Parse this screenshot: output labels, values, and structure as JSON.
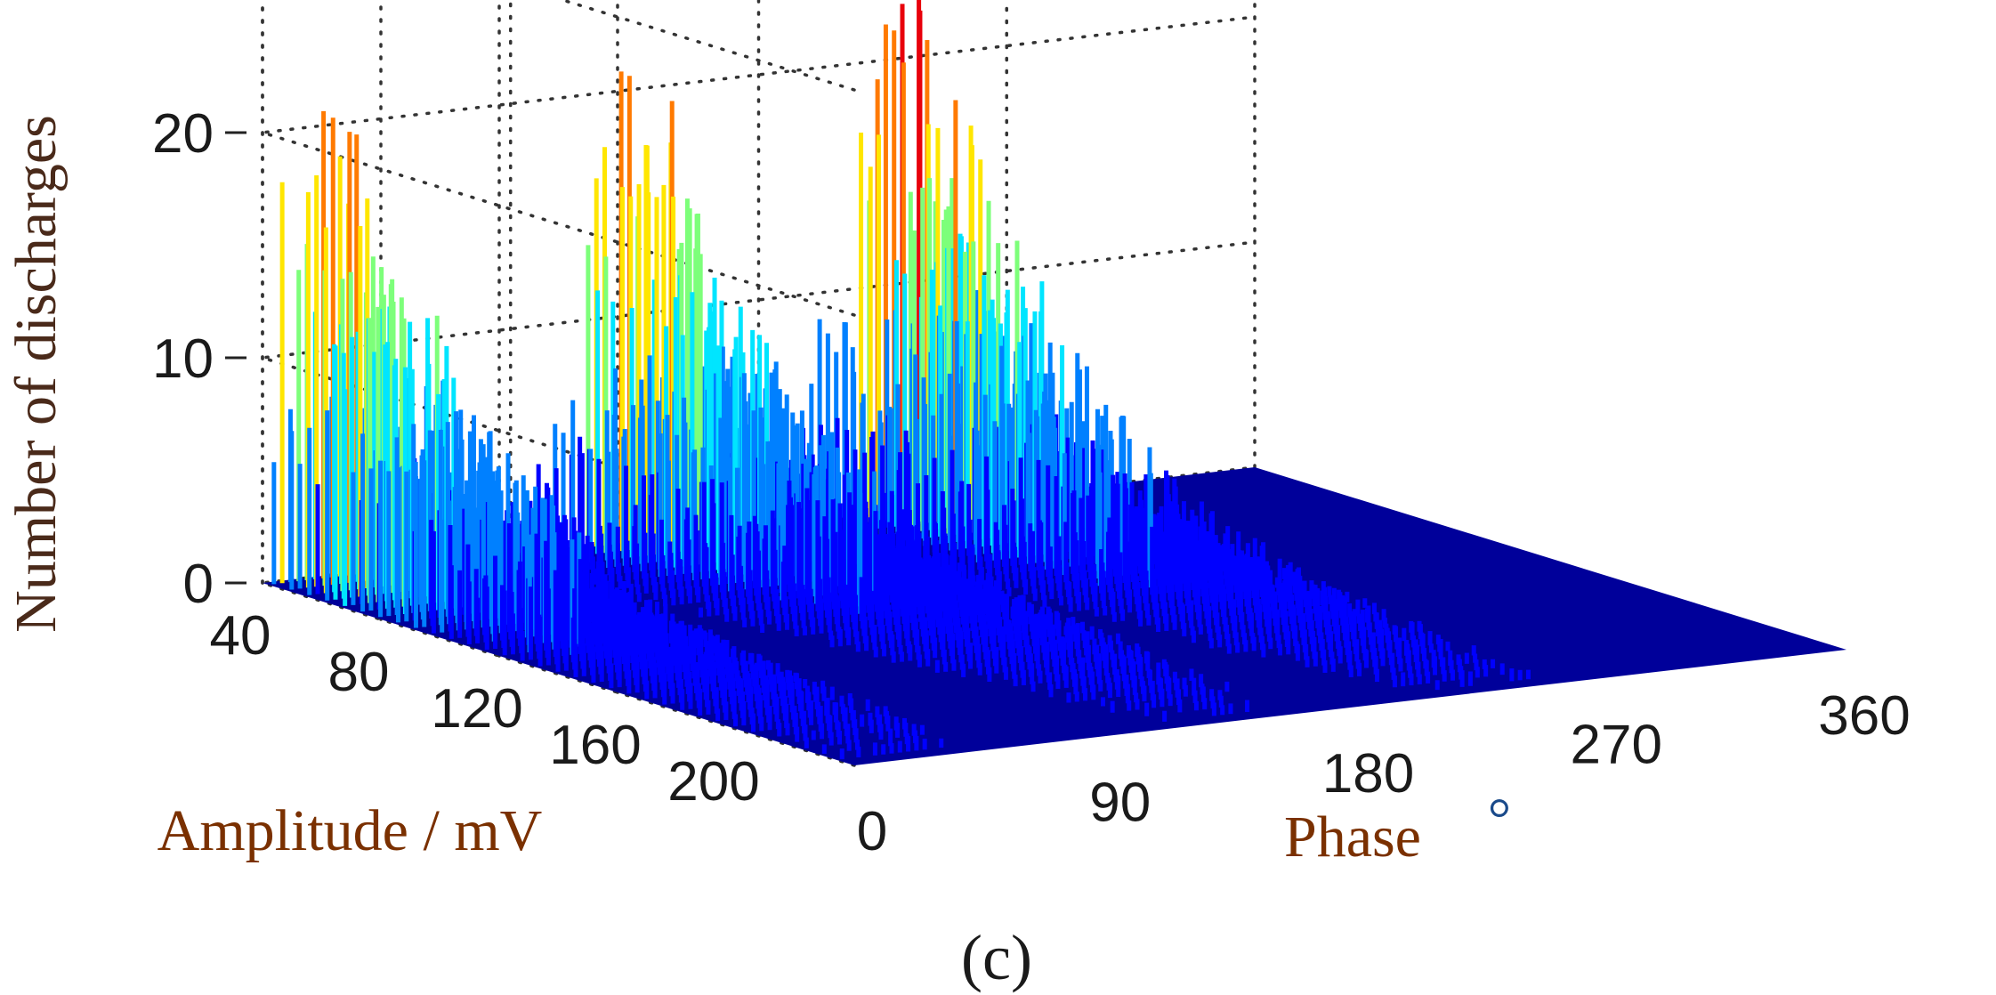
{
  "chart_data": {
    "type": "bar3d",
    "zlabel": "Number of discharges",
    "ylabel": "Amplitude / mV",
    "xlabel": "Phase",
    "xlabel_unit": "°",
    "caption": "(c)",
    "x_ticks": [
      "0",
      "90",
      "180",
      "270",
      "360"
    ],
    "y_ticks": [
      "40",
      "80",
      "120",
      "160",
      "200"
    ],
    "z_ticks": [
      "0",
      "10",
      "20"
    ],
    "xlim": [
      0,
      360
    ],
    "ylim": [
      0,
      200
    ],
    "zlim": [
      0,
      25
    ],
    "colormap": "jet",
    "colors": {
      "low": "#00008f",
      "mid": "#00bfff",
      "high": "#ffd400",
      "peak": "#e8000b"
    },
    "clusters": [
      {
        "phase_center": 20,
        "peak_count": 23
      },
      {
        "phase_center": 135,
        "peak_count": 22
      },
      {
        "phase_center": 230,
        "peak_count": 25
      }
    ]
  }
}
